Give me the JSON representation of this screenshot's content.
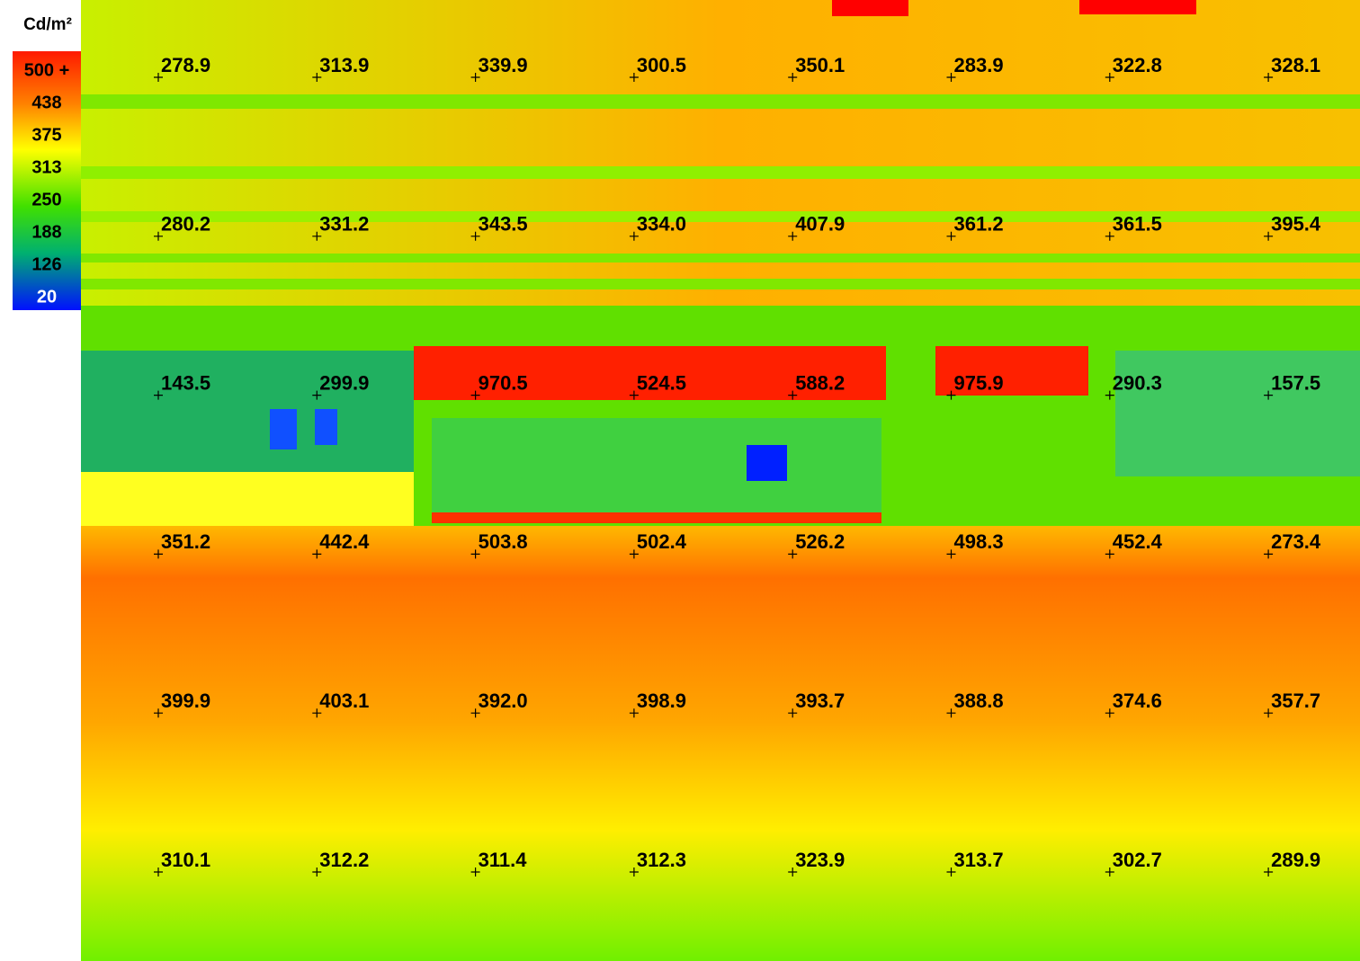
{
  "legend": {
    "unit": "Cd/m²",
    "labels": [
      "500 +",
      "438",
      "375",
      "313",
      "250",
      "188",
      "126",
      "20"
    ]
  },
  "grid": {
    "rows": [
      [
        "278.9",
        "313.9",
        "339.9",
        "300.5",
        "350.1",
        "283.9",
        "322.8",
        "328.1"
      ],
      [
        "280.2",
        "331.2",
        "343.5",
        "334.0",
        "407.9",
        "361.2",
        "361.5",
        "395.4"
      ],
      [
        "143.5",
        "299.9",
        "970.5",
        "524.5",
        "588.2",
        "975.9",
        "290.3",
        "157.5"
      ],
      [
        "351.2",
        "442.4",
        "503.8",
        "502.4",
        "526.2",
        "498.3",
        "452.4",
        "273.4"
      ],
      [
        "399.9",
        "403.1",
        "392.0",
        "398.9",
        "393.7",
        "388.8",
        "374.6",
        "357.7"
      ],
      [
        "310.1",
        "312.2",
        "311.4",
        "312.3",
        "323.9",
        "313.7",
        "302.7",
        "289.9"
      ]
    ]
  }
}
